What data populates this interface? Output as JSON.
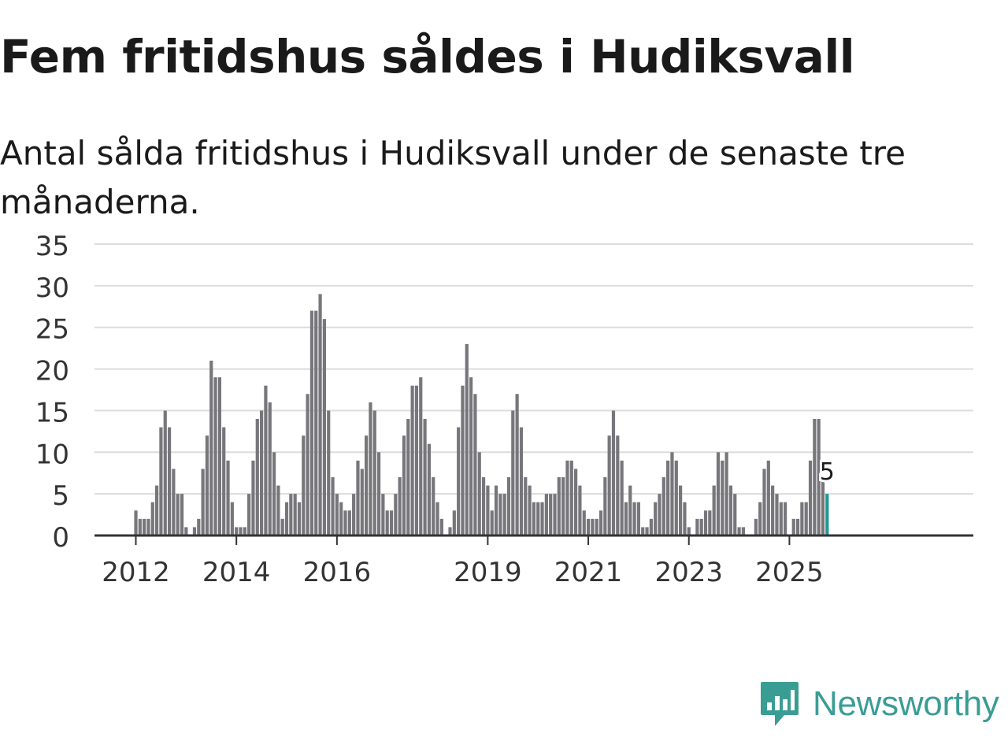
{
  "title": "Fem fritidshus såldes i Hudiksvall",
  "subtitle": "Antal sålda fritidshus i Hudiksvall under de senaste tre månaderna.",
  "brand": {
    "name": "Newsworthy",
    "icon": "newsworthy-logo-icon",
    "color": "#3a9d94"
  },
  "chart_data": {
    "type": "bar",
    "title": "Fem fritidshus såldes i Hudiksvall",
    "xlabel": "",
    "ylabel": "",
    "ylim": [
      0,
      35
    ],
    "y_ticks": [
      "0",
      "5",
      "10",
      "15",
      "20",
      "25",
      "30",
      "35"
    ],
    "x_ticks": [
      {
        "label": "2012",
        "index": 0
      },
      {
        "label": "2014",
        "index": 24
      },
      {
        "label": "2016",
        "index": 48
      },
      {
        "label": "2019",
        "index": 84
      },
      {
        "label": "2021",
        "index": 108
      },
      {
        "label": "2023",
        "index": 132
      },
      {
        "label": "2025",
        "index": 156
      }
    ],
    "start_offset": 0,
    "bar_color": "#77767b",
    "highlight_color": "#1b9a95",
    "highlight_label": "5",
    "values": [
      3,
      2,
      2,
      2,
      4,
      6,
      13,
      15,
      13,
      8,
      5,
      5,
      1,
      0,
      1,
      2,
      8,
      12,
      21,
      19,
      19,
      13,
      9,
      4,
      1,
      1,
      1,
      5,
      9,
      14,
      15,
      18,
      16,
      10,
      6,
      2,
      4,
      5,
      5,
      4,
      12,
      17,
      27,
      27,
      29,
      26,
      15,
      7,
      5,
      4,
      3,
      3,
      5,
      9,
      8,
      12,
      16,
      15,
      10,
      5,
      3,
      3,
      5,
      7,
      12,
      14,
      18,
      18,
      19,
      14,
      11,
      7,
      4,
      2,
      0,
      1,
      3,
      13,
      18,
      23,
      19,
      17,
      10,
      7,
      6,
      3,
      6,
      5,
      5,
      7,
      15,
      17,
      13,
      7,
      6,
      4,
      4,
      4,
      5,
      5,
      5,
      7,
      7,
      9,
      9,
      8,
      6,
      3,
      2,
      2,
      2,
      3,
      7,
      12,
      15,
      12,
      9,
      4,
      6,
      4,
      4,
      1,
      1,
      2,
      4,
      5,
      7,
      9,
      10,
      9,
      6,
      4,
      1,
      0,
      2,
      2,
      3,
      3,
      6,
      10,
      9,
      10,
      6,
      5,
      1,
      1,
      0,
      0,
      2,
      4,
      8,
      9,
      6,
      5,
      4,
      4,
      0,
      2,
      2,
      4,
      4,
      9,
      14,
      14,
      7,
      5
    ]
  }
}
